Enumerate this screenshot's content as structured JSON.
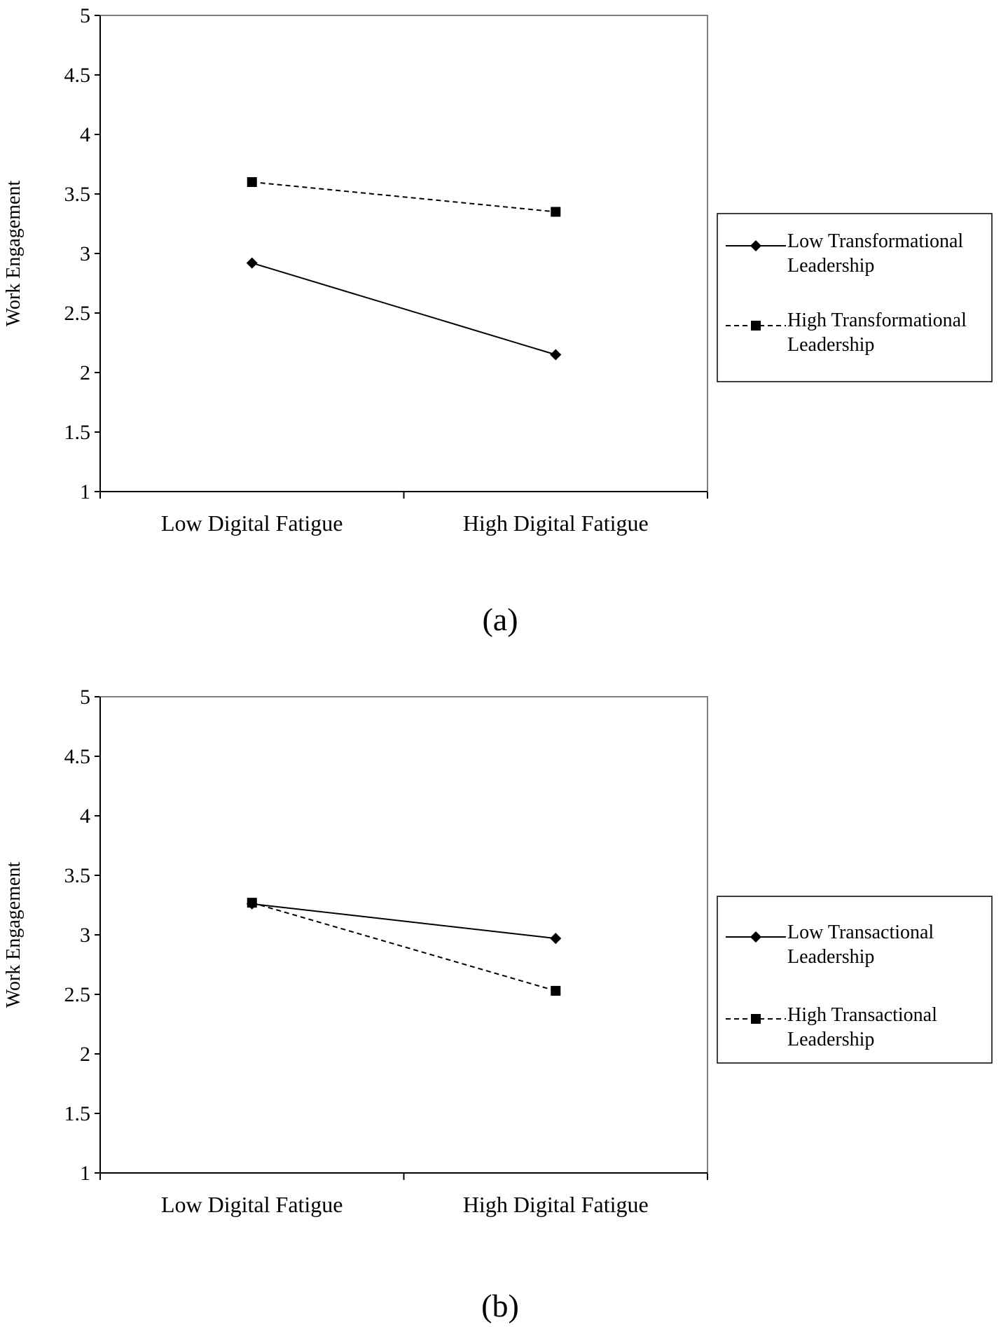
{
  "chart_data": [
    {
      "type": "line",
      "panel": "(a)",
      "categories": [
        "Low Digital Fatigue",
        "High Digital Fatigue"
      ],
      "ylabel": "Work Engagement",
      "ylim": [
        1,
        5
      ],
      "yticks": [
        "1",
        "1.5",
        "2",
        "2.5",
        "3",
        "3.5",
        "4",
        "4.5",
        "5"
      ],
      "grid": false,
      "legend_position": "right",
      "series": [
        {
          "name_lines": [
            "Low  Transformational",
            "Leadership"
          ],
          "marker": "diamond",
          "dash": "solid",
          "values": [
            2.92,
            2.15
          ]
        },
        {
          "name_lines": [
            "High  Transformational",
            "Leadership"
          ],
          "marker": "square",
          "dash": "dashed",
          "values": [
            3.6,
            3.35
          ]
        }
      ]
    },
    {
      "type": "line",
      "panel": "(b)",
      "categories": [
        "Low Digital Fatigue",
        "High Digital Fatigue"
      ],
      "ylabel": "Work Engagement",
      "ylim": [
        1,
        5
      ],
      "yticks": [
        "1",
        "1.5",
        "2",
        "2.5",
        "3",
        "3.5",
        "4",
        "4.5",
        "5"
      ],
      "grid": false,
      "legend_position": "right",
      "series": [
        {
          "name_lines": [
            "Low Transactional",
            "Leadership"
          ],
          "marker": "diamond",
          "dash": "solid",
          "values": [
            3.26,
            2.97
          ]
        },
        {
          "name_lines": [
            "High Transactional",
            "Leadership"
          ],
          "marker": "square",
          "dash": "dashed",
          "values": [
            3.27,
            2.53
          ]
        }
      ]
    }
  ]
}
